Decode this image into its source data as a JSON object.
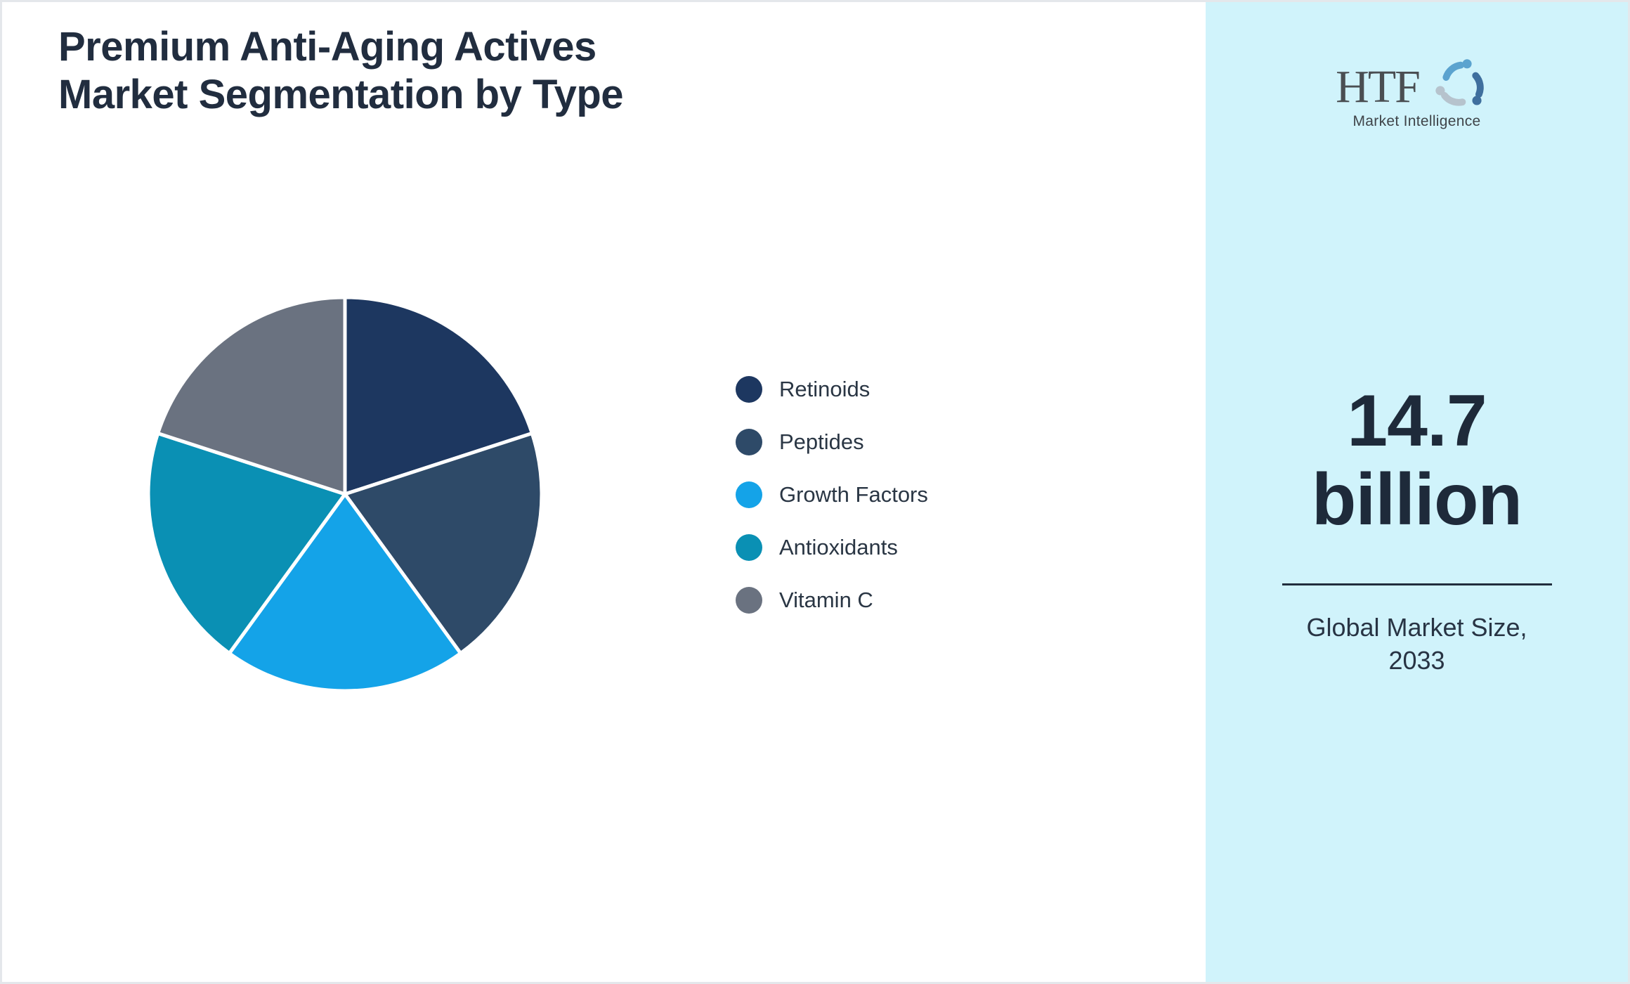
{
  "header": {
    "title_lines": [
      "Premium Anti-Aging Actives",
      "Market Segmentation by Type"
    ]
  },
  "chart_data": {
    "type": "pie",
    "title": "Premium Anti-Aging Actives Market Segmentation by Type",
    "categories": [
      "Retinoids",
      "Peptides",
      "Growth Factors",
      "Antioxidants",
      "Vitamin C"
    ],
    "values": [
      20,
      20,
      20,
      20,
      20
    ],
    "value_unit": "percent share (approx., equal fifths; no data labels shown)",
    "colors": [
      "#1d3760",
      "#2e4a68",
      "#14a3e8",
      "#0a90b4",
      "#6a7280"
    ],
    "start_angle_deg": 0,
    "direction": "clockwise",
    "slice_border_color": "#ffffff",
    "slice_labels_shown": false,
    "legend_position": "right-middle"
  },
  "sidebar": {
    "background_color": "#d0f3fb",
    "logo": {
      "brand": "HTF",
      "subtitle": "Market Intelligence",
      "icon": "three-figure-swirl-icon",
      "icon_colors": [
        "#5ba3cf",
        "#3f6f9e",
        "#b6c3cd"
      ]
    },
    "market_size": {
      "value_lines": [
        "14.7",
        "billion"
      ],
      "caption_lines": [
        "Global Market Size,",
        "2033"
      ]
    }
  }
}
